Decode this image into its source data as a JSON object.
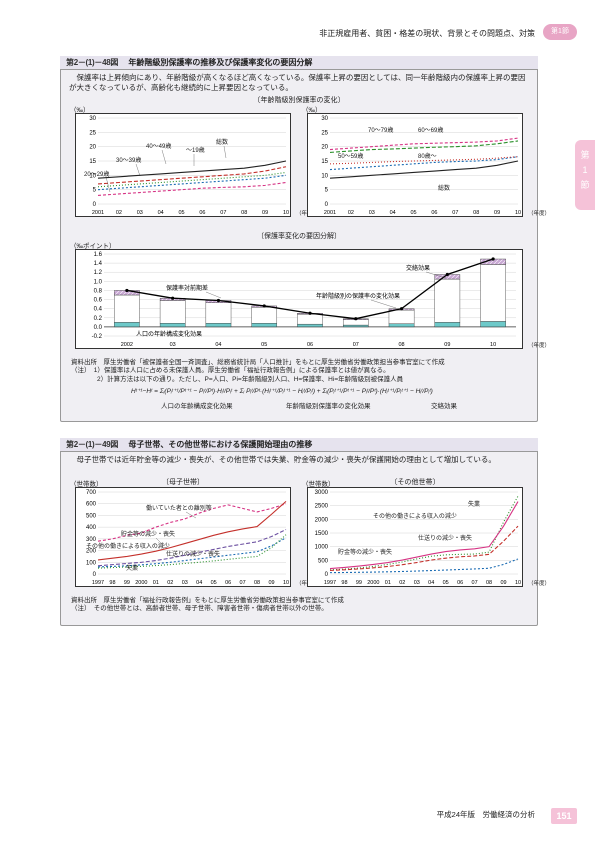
{
  "header": {
    "breadcrumb": "非正規雇用者、貧困・格差の現状、背景とその問題点、対策",
    "section_badge": "第1節",
    "side_tab_lines": [
      "第",
      "1",
      "節"
    ]
  },
  "panel1": {
    "title_num": "第2－(1)－48図",
    "title_text": "年齢階級別保護率の推移及び保護率変化の要因分解",
    "intro": "　保護率は上昇傾向にあり、年齢階級が高くなるほど高くなっている。保護率上昇の要因としては、同一年齢階級内の保護率上昇の要因が大きくなっているが、高齢化も継続的に上昇要因となっている。",
    "subtitle_top": "〔年齢階級別保護率の変化〕",
    "chartA": {
      "ylabel": "（‰）",
      "ymax": 30,
      "ytick": 5,
      "series_labels": {
        "s20": "20～29歳",
        "s30": "30～39歳",
        "s40": "40～49歳",
        "s19": "～19歳",
        "total": "総数"
      },
      "xticks": [
        "2001",
        "02",
        "03",
        "04",
        "05",
        "06",
        "07",
        "08",
        "09",
        "10"
      ],
      "xunit": "（年度）",
      "colors": {
        "s20": "#d63384",
        "s30": "#1a6bb3",
        "s40": "#c4302b",
        "s19": "#2a8f2a",
        "total": "#222"
      },
      "data": {
        "s20": [
          3,
          3.5,
          4,
          4.5,
          5,
          5.5,
          5.8,
          6,
          6.5,
          7.5
        ],
        "s30": [
          5,
          5.5,
          6,
          6.5,
          7,
          7.5,
          8,
          8.5,
          9,
          10
        ],
        "s19": [
          6,
          6.5,
          7,
          7.5,
          8,
          8.5,
          9,
          9.5,
          10,
          11
        ],
        "s40": [
          7,
          7.5,
          8,
          8.5,
          9,
          9.5,
          10,
          10.5,
          11.5,
          13
        ],
        "total": [
          9,
          9.5,
          10,
          10.5,
          11,
          11.5,
          12,
          12.5,
          13.5,
          15
        ]
      }
    },
    "chartB": {
      "ylabel": "（‰）",
      "ymax": 30,
      "ytick": 5,
      "series_labels": {
        "s50": "50～59歳",
        "s60": "60～69歳",
        "s70": "70～79歳",
        "s80": "80歳～",
        "total": "総数"
      },
      "xticks": [
        "2001",
        "02",
        "03",
        "04",
        "05",
        "06",
        "07",
        "08",
        "09",
        "10"
      ],
      "xunit": "（年度）",
      "colors": {
        "s50": "#1a6bb3",
        "s60": "#2a8f2a",
        "s70": "#d63384",
        "s80": "#c4302b",
        "total": "#222"
      },
      "data": {
        "s50": [
          12,
          12.5,
          13,
          13.5,
          14,
          14.5,
          14.8,
          15,
          15.5,
          16.5
        ],
        "s80": [
          14,
          14.2,
          14.5,
          14.8,
          15,
          15.2,
          15.4,
          15.6,
          16,
          16.5
        ],
        "total": [
          9,
          9.5,
          10,
          10.5,
          11,
          11.5,
          12,
          12.5,
          13.5,
          15
        ],
        "s60": [
          18,
          18.5,
          19,
          19.2,
          19.5,
          19.8,
          20,
          20.3,
          21,
          22
        ],
        "s70": [
          19,
          19.5,
          20,
          20.5,
          21,
          21.2,
          21.4,
          21.6,
          22,
          23
        ]
      }
    },
    "subtitle_mid": "〔保護率変化の要因分解〕",
    "chartC": {
      "ylabel": "（‰ポイント）",
      "ymin": -0.2,
      "ymax": 1.6,
      "ytick": 0.2,
      "xticks": [
        "2002",
        "03",
        "04",
        "05",
        "06",
        "07",
        "08",
        "09",
        "10"
      ],
      "xunit": "（年度）",
      "colors": {
        "cross": "#c9a8d4",
        "age_rate": "#ffffff",
        "pop": "#6dc9c9",
        "line": "#000"
      },
      "legend": {
        "line": "保護率対前期差",
        "cross": "交絡効果",
        "age_rate": "年齢階級別の保護率の変化効果",
        "pop": "人口の年齢構成変化効果"
      },
      "bars": {
        "2002": {
          "cross": 0.1,
          "age_rate": 0.6,
          "pop": 0.1
        },
        "03": {
          "cross": 0.05,
          "age_rate": 0.5,
          "pop": 0.08
        },
        "04": {
          "cross": 0.05,
          "age_rate": 0.45,
          "pop": 0.08
        },
        "05": {
          "cross": 0.03,
          "age_rate": 0.35,
          "pop": 0.08
        },
        "06": {
          "cross": 0.02,
          "age_rate": 0.22,
          "pop": 0.06
        },
        "07": {
          "cross": 0.02,
          "age_rate": 0.12,
          "pop": 0.04
        },
        "08": {
          "cross": 0.03,
          "age_rate": 0.3,
          "pop": 0.07
        },
        "09": {
          "cross": 0.1,
          "age_rate": 0.95,
          "pop": 0.1
        },
        "10": {
          "cross": 0.12,
          "age_rate": 1.25,
          "pop": 0.12
        }
      },
      "line": [
        0.8,
        0.63,
        0.58,
        0.46,
        0.3,
        0.18,
        0.4,
        1.15,
        1.49
      ]
    },
    "notes_source": "資料出所　厚生労働省「被保護者全国一斉調査」、総務省統計局「人口推計」をもとに厚生労働省労働政策担当参事官室にて作成",
    "notes_1": "（注）　1）保護率は人口に占める未保護人員。厚生労働省「福祉行政報告例」による保護率とは値が異なる。",
    "notes_2": "　　　　2）計算方法は以下の通り。ただし、P=人口、Pi=年齢階級別人口、H=保護率、Hi=年齢階級別被保護人員",
    "formula": "Hᵗ⁺¹−Hᵗ = Σᵢ(Pᵢᵗ⁺¹/Pᵗ⁺¹ − Pᵢᵗ/Pᵗ)·Hᵢᵗ/Pᵢᵗ + Σᵢ Pᵢᵗ/Pᵗ·(Hᵢᵗ⁺¹/Pᵢᵗ⁺¹ − Hᵢᵗ/Pᵢᵗ) + Σᵢ(Pᵢᵗ⁺¹/Pᵗ⁺¹ − Pᵢᵗ/Pᵗ)·(Hᵢᵗ⁺¹/Pᵢᵗ⁺¹ − Hᵢᵗ/Pᵢᵗ)",
    "formula_labels": {
      "a": "人口の年齢構成変化効果",
      "b": "年齢階級別保護率の変化効果",
      "c": "交絡効果"
    }
  },
  "panel2": {
    "title_num": "第2－(1)－49図",
    "title_text": "母子世帯、その他世帯における保護開始理由の推移",
    "intro": "　母子世帯では近年貯金等の減少・喪失が、その他世帯では失業、貯金等の減少・喪失が保護開始の理由として増加している。",
    "chartD": {
      "title": "〔母子世帯〕",
      "ylabel": "（世帯数）",
      "ymax": 700,
      "ytick": 100,
      "xticks": [
        "1997",
        "98",
        "99",
        "2000",
        "01",
        "02",
        "03",
        "04",
        "05",
        "06",
        "07",
        "08",
        "09",
        "10"
      ],
      "xunit": "（年度）",
      "colors": {
        "divorce": "#d63384",
        "savings": "#c4302b",
        "other_income": "#6b4fa0",
        "remittance": "#1a6bb3",
        "unemployment": "#2a8f2a"
      },
      "labels": {
        "divorce": "働いていた者との離別等",
        "savings": "貯金等の減少・喪失",
        "other_income": "その他の働きによる収入の減少",
        "remittance": "仕送りの減少・喪失",
        "unemployment": "失業"
      },
      "data": {
        "divorce": [
          280,
          300,
          330,
          350,
          400,
          440,
          470,
          520,
          560,
          590,
          560,
          530,
          560,
          600
        ],
        "savings": [
          120,
          135,
          150,
          170,
          195,
          225,
          260,
          295,
          330,
          360,
          385,
          405,
          510,
          620
        ],
        "other_income": [
          70,
          80,
          90,
          100,
          115,
          135,
          160,
          185,
          210,
          235,
          255,
          275,
          320,
          380
        ],
        "remittance": [
          60,
          65,
          70,
          78,
          88,
          100,
          115,
          130,
          145,
          160,
          175,
          190,
          240,
          310
        ],
        "unemployment": [
          50,
          55,
          60,
          65,
          72,
          80,
          90,
          100,
          112,
          125,
          138,
          150,
          225,
          335
        ]
      }
    },
    "chartE": {
      "title": "〔その他世帯〕",
      "ylabel": "（世帯数）",
      "ymax": 3000,
      "ytick": 500,
      "xticks": [
        "1997",
        "98",
        "99",
        "2000",
        "01",
        "02",
        "03",
        "04",
        "05",
        "06",
        "07",
        "08",
        "09",
        "10"
      ],
      "xunit": "（年度）",
      "colors": {
        "unemployment": "#2a8f2a",
        "other_income": "#c4302b",
        "remittance": "#1a6bb3",
        "savings": "#d63384"
      },
      "labels": {
        "unemployment": "失業",
        "other_income": "その他の働きによる収入の減少",
        "remittance": "仕送りの減少・喪失",
        "savings": "貯金等の減少・喪失"
      },
      "data": {
        "unemployment": [
          150,
          180,
          220,
          280,
          350,
          440,
          550,
          650,
          700,
          720,
          730,
          800,
          1900,
          2850
        ],
        "savings": [
          200,
          240,
          290,
          350,
          420,
          510,
          620,
          730,
          820,
          880,
          920,
          1000,
          1750,
          2650
        ],
        "other_income": [
          130,
          155,
          185,
          225,
          275,
          340,
          420,
          510,
          580,
          630,
          660,
          720,
          1200,
          1750
        ],
        "remittance": [
          50,
          55,
          62,
          70,
          80,
          92,
          108,
          126,
          145,
          165,
          185,
          210,
          350,
          550
        ]
      }
    },
    "notes_source": "資料出所　厚生労働省「福祉行政報告例」をもとに厚生労働省労働政策担当参事官室にて作成",
    "notes_1": "（注）　その他世帯とは、高齢者世帯、母子世帯、障害者世帯・傷病者世帯以外の世帯。"
  },
  "footer": {
    "text": "平成24年版　労働経済の分析",
    "page": "151"
  }
}
